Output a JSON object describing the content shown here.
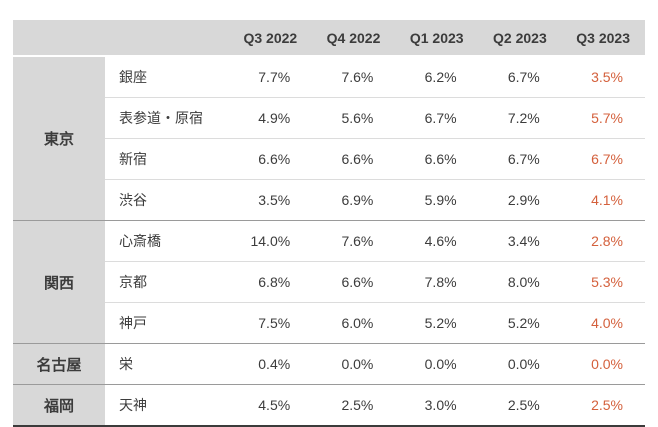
{
  "chart_data": {
    "type": "table",
    "columns": [
      "Q3 2022",
      "Q4 2022",
      "Q1 2023",
      "Q2 2023",
      "Q3 2023"
    ],
    "highlight_last_column": true,
    "row_groups": [
      {
        "region": "東京",
        "rows": [
          {
            "district": "銀座",
            "values": [
              "7.7%",
              "7.6%",
              "6.2%",
              "6.7%",
              "3.5%"
            ]
          },
          {
            "district": "表参道・原宿",
            "values": [
              "4.9%",
              "5.6%",
              "6.7%",
              "7.2%",
              "5.7%"
            ]
          },
          {
            "district": "新宿",
            "values": [
              "6.6%",
              "6.6%",
              "6.6%",
              "6.7%",
              "6.7%"
            ]
          },
          {
            "district": "渋谷",
            "values": [
              "3.5%",
              "6.9%",
              "5.9%",
              "2.9%",
              "4.1%"
            ]
          }
        ]
      },
      {
        "region": "関西",
        "rows": [
          {
            "district": "心斎橋",
            "values": [
              "14.0%",
              "7.6%",
              "4.6%",
              "3.4%",
              "2.8%"
            ]
          },
          {
            "district": "京都",
            "values": [
              "6.8%",
              "6.6%",
              "7.8%",
              "8.0%",
              "5.3%"
            ]
          },
          {
            "district": "神戸",
            "values": [
              "7.5%",
              "6.0%",
              "5.2%",
              "5.2%",
              "4.0%"
            ]
          }
        ]
      },
      {
        "region": "名古屋",
        "rows": [
          {
            "district": "栄",
            "values": [
              "0.4%",
              "0.0%",
              "0.0%",
              "0.0%",
              "0.0%"
            ]
          }
        ]
      },
      {
        "region": "福岡",
        "rows": [
          {
            "district": "天神",
            "values": [
              "4.5%",
              "2.5%",
              "3.0%",
              "2.5%",
              "2.5%"
            ]
          }
        ]
      }
    ]
  },
  "colors": {
    "highlight": "#d4603c",
    "header_bg": "#d8d8d8",
    "region_bg": "#d8d8d8",
    "text": "#3c3c3c",
    "group_divider": "#9a9a9a",
    "row_divider": "#dcdcdc",
    "bottom_border": "#3b3b3b"
  }
}
